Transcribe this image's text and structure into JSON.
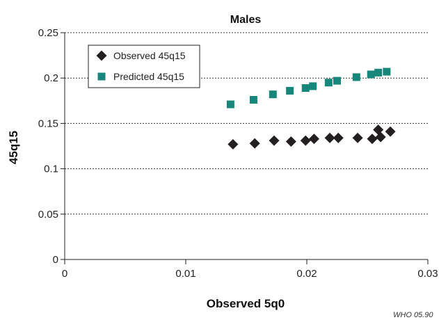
{
  "chart_data": {
    "type": "scatter",
    "title": "Males",
    "xlabel": "Observed 5q0",
    "ylabel": "45q15",
    "xlim": [
      0,
      0.03
    ],
    "ylim": [
      0,
      0.25
    ],
    "xticks": [
      0,
      0.01,
      0.02,
      0.03
    ],
    "xtick_labels": [
      "0",
      "0.01",
      "0.02",
      "0.03"
    ],
    "yticks": [
      0,
      0.05,
      0.1,
      0.15,
      0.2,
      0.25
    ],
    "ytick_labels": [
      "0",
      "0.05",
      "0.1",
      "0.15",
      "0.2",
      "0.25"
    ],
    "grid": "horizontal dotted",
    "legend_position": "top-left",
    "series": [
      {
        "name": "Observed 45q15",
        "marker": "diamond",
        "color": "#231f20",
        "points": [
          [
            0.0139,
            0.127
          ],
          [
            0.0157,
            0.128
          ],
          [
            0.0173,
            0.131
          ],
          [
            0.0187,
            0.13
          ],
          [
            0.0199,
            0.131
          ],
          [
            0.0206,
            0.133
          ],
          [
            0.0219,
            0.134
          ],
          [
            0.0226,
            0.134
          ],
          [
            0.0242,
            0.134
          ],
          [
            0.0254,
            0.133
          ],
          [
            0.0259,
            0.143
          ],
          [
            0.0261,
            0.135
          ],
          [
            0.0269,
            0.141
          ]
        ]
      },
      {
        "name": "Predicted 45q15",
        "marker": "square",
        "color": "#16877a",
        "points": [
          [
            0.0137,
            0.171
          ],
          [
            0.0156,
            0.176
          ],
          [
            0.0172,
            0.182
          ],
          [
            0.0186,
            0.186
          ],
          [
            0.0199,
            0.189
          ],
          [
            0.0205,
            0.191
          ],
          [
            0.0218,
            0.195
          ],
          [
            0.0225,
            0.197
          ],
          [
            0.0241,
            0.201
          ],
          [
            0.0253,
            0.204
          ],
          [
            0.0259,
            0.206
          ],
          [
            0.0266,
            0.207
          ]
        ]
      }
    ]
  },
  "credit": "WHO 05.90"
}
